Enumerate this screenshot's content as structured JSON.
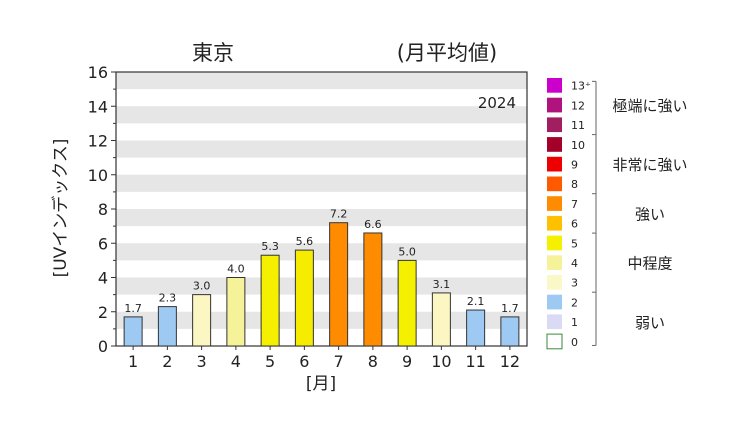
{
  "title_left": "東京",
  "title_right": "(月平均値)",
  "chart_data": {
    "type": "bar",
    "year_label": "2024",
    "xlabel": "[月]",
    "ylabel": "[UVインデックス]",
    "ylim": [
      0,
      16
    ],
    "yticks": [
      0,
      2,
      4,
      6,
      8,
      10,
      12,
      14,
      16
    ],
    "categories": [
      "1",
      "2",
      "3",
      "4",
      "5",
      "6",
      "7",
      "8",
      "9",
      "10",
      "11",
      "12"
    ],
    "values": [
      1.7,
      2.3,
      3.0,
      4.0,
      5.3,
      5.6,
      7.2,
      6.6,
      5.0,
      3.1,
      2.1,
      1.7
    ],
    "value_labels": [
      "1.7",
      "2.3",
      "3.0",
      "4.0",
      "5.3",
      "5.6",
      "7.2",
      "6.6",
      "5.0",
      "3.1",
      "2.1",
      "1.7"
    ],
    "bar_colors": [
      "#9ec9f2",
      "#9ec9f2",
      "#fbf6c2",
      "#f5f29a",
      "#f5f000",
      "#f5ec00",
      "#ff8c00",
      "#ff8c00",
      "#f5f000",
      "#fbf6c2",
      "#9ec9f2",
      "#9ec9f2"
    ],
    "grid": "horizontal bands",
    "legend_position": "right"
  },
  "legend": {
    "levels": [
      {
        "label": "13⁺",
        "color": "#cc00cc"
      },
      {
        "label": "12",
        "color": "#b0137e"
      },
      {
        "label": "11",
        "color": "#a11f61"
      },
      {
        "label": "10",
        "color": "#a3002a"
      },
      {
        "label": "9",
        "color": "#ee0000"
      },
      {
        "label": "8",
        "color": "#ff5a00"
      },
      {
        "label": "7",
        "color": "#ff8c00"
      },
      {
        "label": "6",
        "color": "#ffc000"
      },
      {
        "label": "5",
        "color": "#f5f000"
      },
      {
        "label": "4",
        "color": "#f5f29a"
      },
      {
        "label": "3",
        "color": "#fbf8c8"
      },
      {
        "label": "2",
        "color": "#9ec9f2"
      },
      {
        "label": "1",
        "color": "#dadaf5"
      },
      {
        "label": "0",
        "color": "#ffffff"
      }
    ],
    "categories": [
      {
        "label": "極端に強い",
        "from": 11,
        "to": 13
      },
      {
        "label": "非常に強い",
        "from": 8,
        "to": 10
      },
      {
        "label": "強い",
        "from": 6,
        "to": 7
      },
      {
        "label": "中程度",
        "from": 3,
        "to": 5
      },
      {
        "label": "弱い",
        "from": 0,
        "to": 2
      }
    ]
  }
}
